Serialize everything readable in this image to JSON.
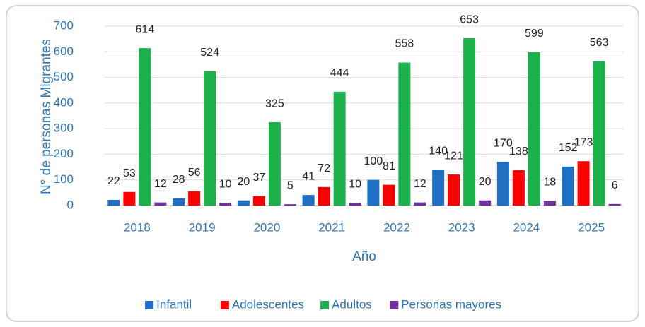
{
  "chart_data": {
    "type": "bar",
    "y_label": "N° de personas Migrantes",
    "x_label": "Año",
    "categories": [
      "2018",
      "2019",
      "2020",
      "2021",
      "2022",
      "2023",
      "2024",
      "2025"
    ],
    "series": [
      {
        "name": "Infantil",
        "color": "#1f6fc5",
        "values": [
          22,
          28,
          20,
          41,
          100,
          140,
          170,
          152
        ]
      },
      {
        "name": "Adolescentes",
        "color": "#ff0000",
        "values": [
          53,
          56,
          37,
          72,
          81,
          121,
          138,
          173
        ]
      },
      {
        "name": "Adultos",
        "color": "#1db14b",
        "values": [
          614,
          524,
          325,
          444,
          558,
          653,
          599,
          563
        ]
      },
      {
        "name": "Personas mayores",
        "color": "#7030a0",
        "values": [
          12,
          10,
          5,
          10,
          12,
          20,
          18,
          6
        ]
      }
    ],
    "ylim": [
      0,
      700
    ],
    "yticks": [
      0,
      100,
      200,
      300,
      400,
      500,
      600,
      700
    ],
    "grid": true,
    "legend": "bottom"
  }
}
